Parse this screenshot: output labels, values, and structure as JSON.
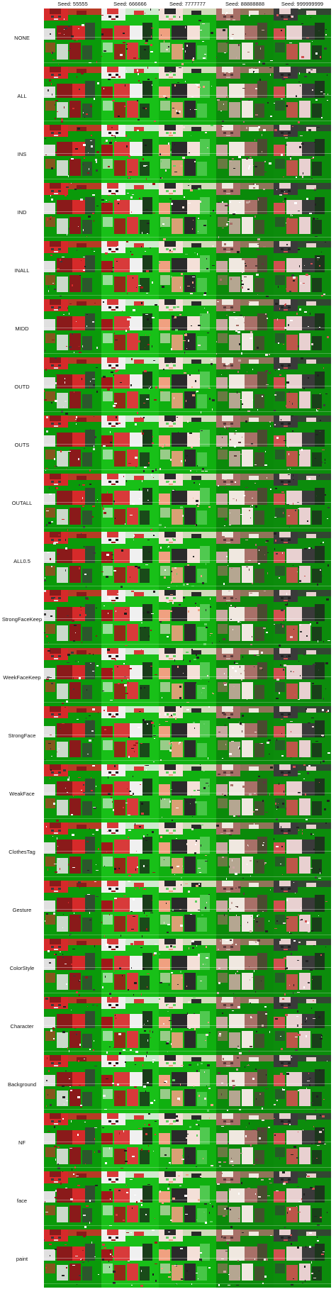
{
  "seeds": [
    "Seed: 55555",
    "Seed: 666666",
    "Seed: 7777777",
    "Seed: 88888888",
    "Seed: 999999999"
  ],
  "rows": [
    "NONE",
    "ALL",
    "INS",
    "IND",
    "INALL",
    "MIDD",
    "OUTD",
    "OUTS",
    "OUTALL",
    "ALL0.5",
    "StrongFaceKeep",
    "WeekFaceKeep",
    "StrongFace",
    "WeakFace",
    "ClothesTag",
    "Gesture",
    "ColorStyle",
    "Character",
    "Background",
    "NF",
    "face",
    "paint"
  ],
  "tile_styles": [
    {
      "name": "red-skin",
      "bg": "#0a9a0a",
      "c1": "#d62a2a",
      "c2": "#8a1a1a",
      "c3": "#e0e0e0",
      "c4": "#3a3a3a"
    },
    {
      "name": "white-red-skin",
      "bg": "#18c018",
      "c1": "#f0f0f0",
      "c2": "#d83a3a",
      "c3": "#a01818",
      "c4": "#1a1a1a"
    },
    {
      "name": "pale-skin",
      "bg": "#10b010",
      "c1": "#f4e0d8",
      "c2": "#2a2a2a",
      "c3": "#f0a080",
      "c4": "#60d060"
    },
    {
      "name": "mauve-skin",
      "bg": "#0a8a0a",
      "c1": "#a87068",
      "c2": "#f0e8e0",
      "c3": "#c8a8a0",
      "c4": "#5a3a3a"
    },
    {
      "name": "dark-skin",
      "bg": "#0c8c0c",
      "c1": "#3a3a3a",
      "c2": "#e8d0d0",
      "c3": "#d05050",
      "c4": "#202020"
    }
  ]
}
